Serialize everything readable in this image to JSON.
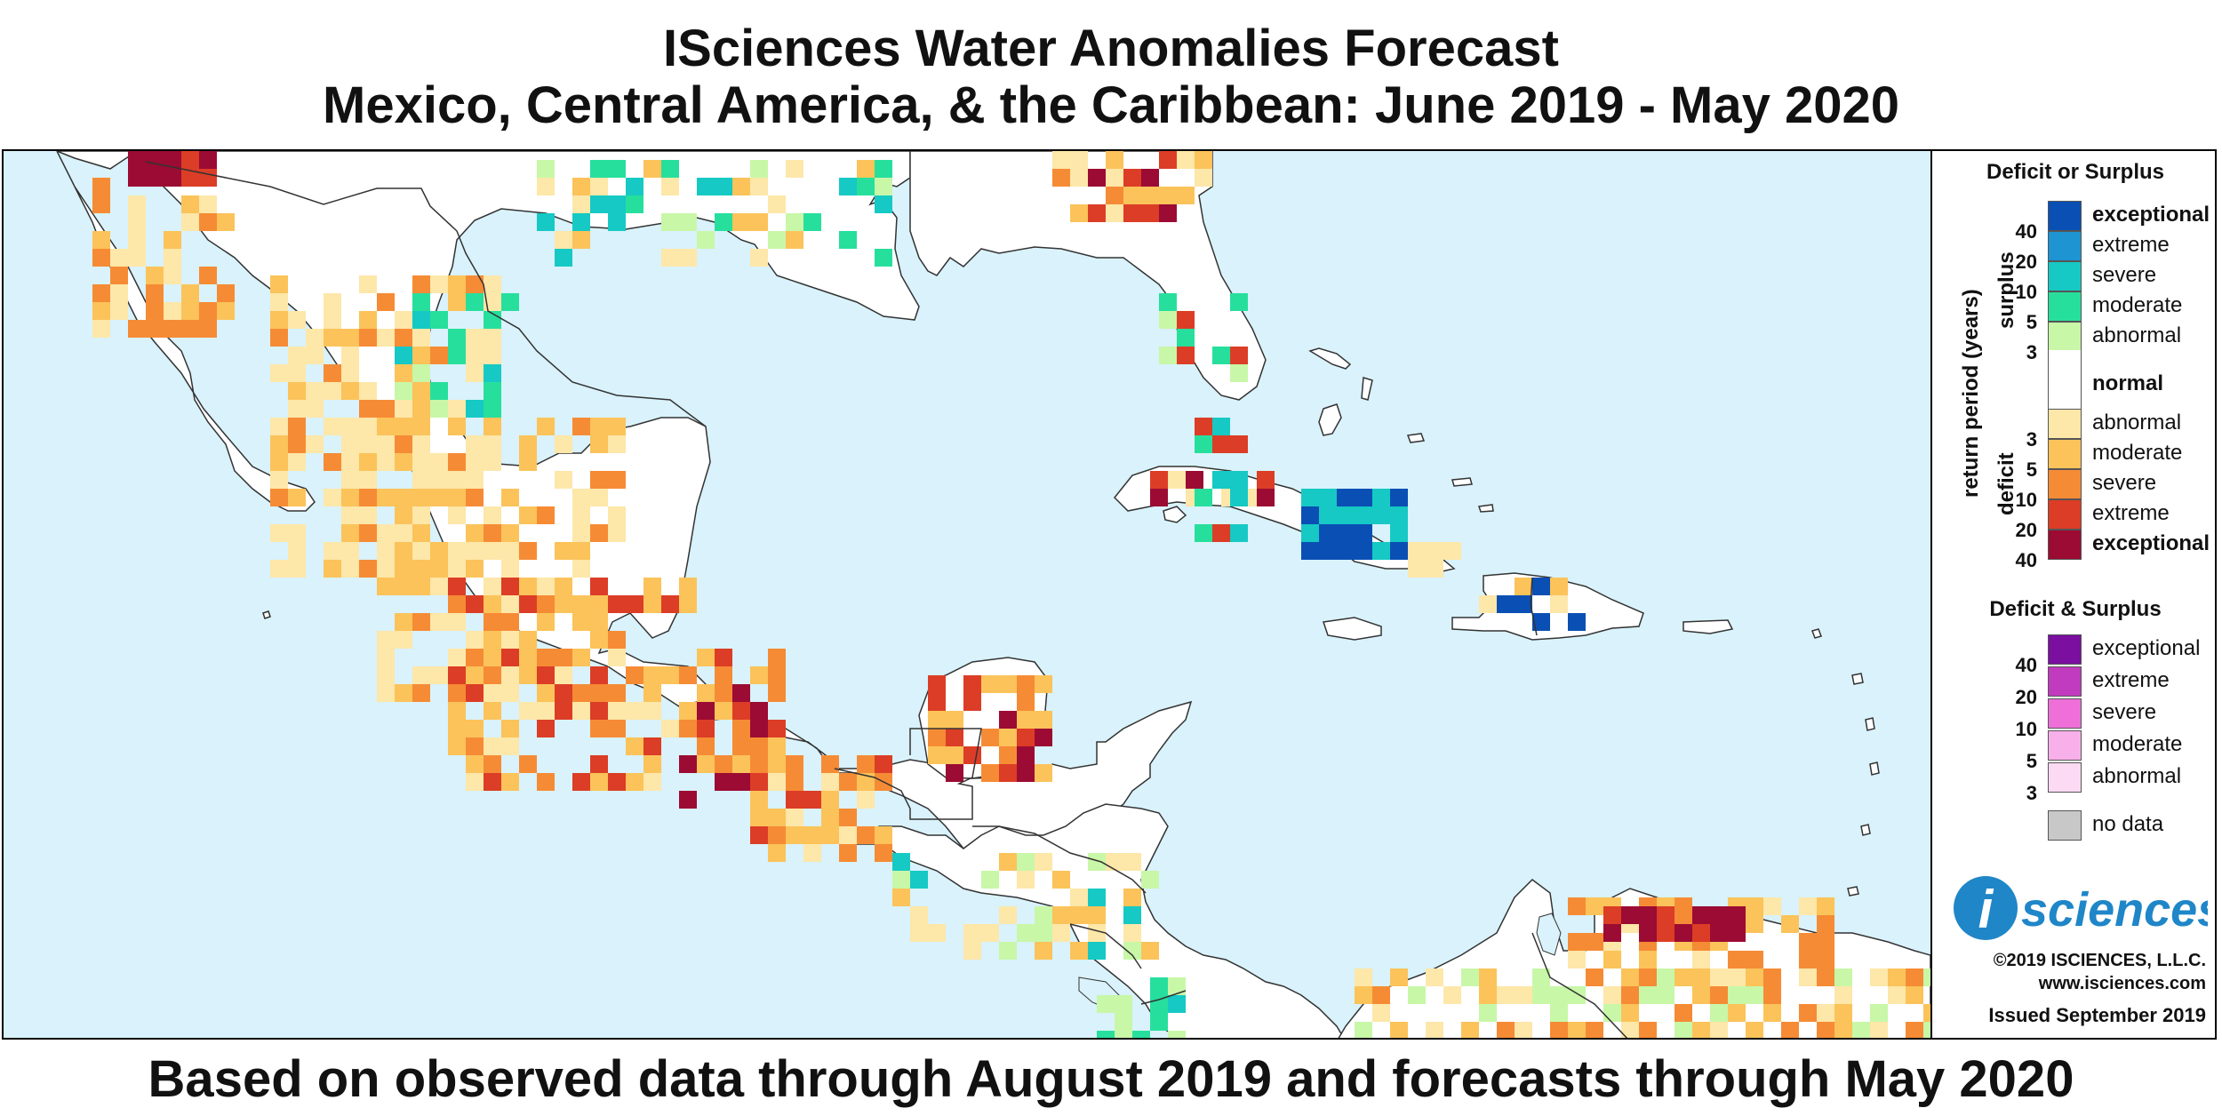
{
  "title": "ISciences Water Anomalies Forecast",
  "subtitle": "Mexico, Central America, & the Caribbean: June 2019 - May 2020",
  "footer": "Based on observed data through August 2019 and forecasts through May 2020",
  "legend": {
    "deficit_surplus_title": "Deficit or Surplus",
    "axis_label": "return period (years)",
    "surplus_label": "surplus",
    "deficit_label": "deficit",
    "surplus_rows": [
      {
        "num": "40",
        "label": "exceptional",
        "color": "#0a4fb4"
      },
      {
        "num": "20",
        "label": "extreme",
        "color": "#1e94d2"
      },
      {
        "num": "10",
        "label": "severe",
        "color": "#16c9c4"
      },
      {
        "num": "5",
        "label": "moderate",
        "color": "#27df9c"
      },
      {
        "num": "3",
        "label": "abnormal",
        "color": "#c8f7a8"
      }
    ],
    "normal": {
      "label": "normal",
      "color": "#ffffff"
    },
    "deficit_rows": [
      {
        "num": "3",
        "label": "abnormal",
        "color": "#fde7a9"
      },
      {
        "num": "5",
        "label": "moderate",
        "color": "#fbc35a"
      },
      {
        "num": "10",
        "label": "severe",
        "color": "#f68b35"
      },
      {
        "num": "20",
        "label": "extreme",
        "color": "#dc3d26"
      },
      {
        "num": "40",
        "label": "exceptional",
        "color": "#9b0b33"
      }
    ],
    "both_title": "Deficit & Surplus",
    "both_rows": [
      {
        "num": "40",
        "label": "exceptional",
        "color": "#7a0fa0"
      },
      {
        "num": "20",
        "label": "extreme",
        "color": "#c03bbd"
      },
      {
        "num": "10",
        "label": "severe",
        "color": "#ee6fd8"
      },
      {
        "num": "5",
        "label": "moderate",
        "color": "#f8b0ea"
      },
      {
        "num": "3",
        "label": "abnormal",
        "color": "#fcdaf3"
      }
    ],
    "no_data": {
      "label": "no data",
      "color": "#c8c8c8"
    },
    "logo_text": "sciences",
    "logo_letter": "i",
    "copyright": "©2019 ISCIENCES, L.L.C.",
    "website": "www.isciences.com",
    "issued": "Issued September 2019"
  },
  "colors": {
    "ocean": "#d9f2fb",
    "land": "#ffffff",
    "border": "#333333",
    "logo_blue": "#1f86c8"
  }
}
